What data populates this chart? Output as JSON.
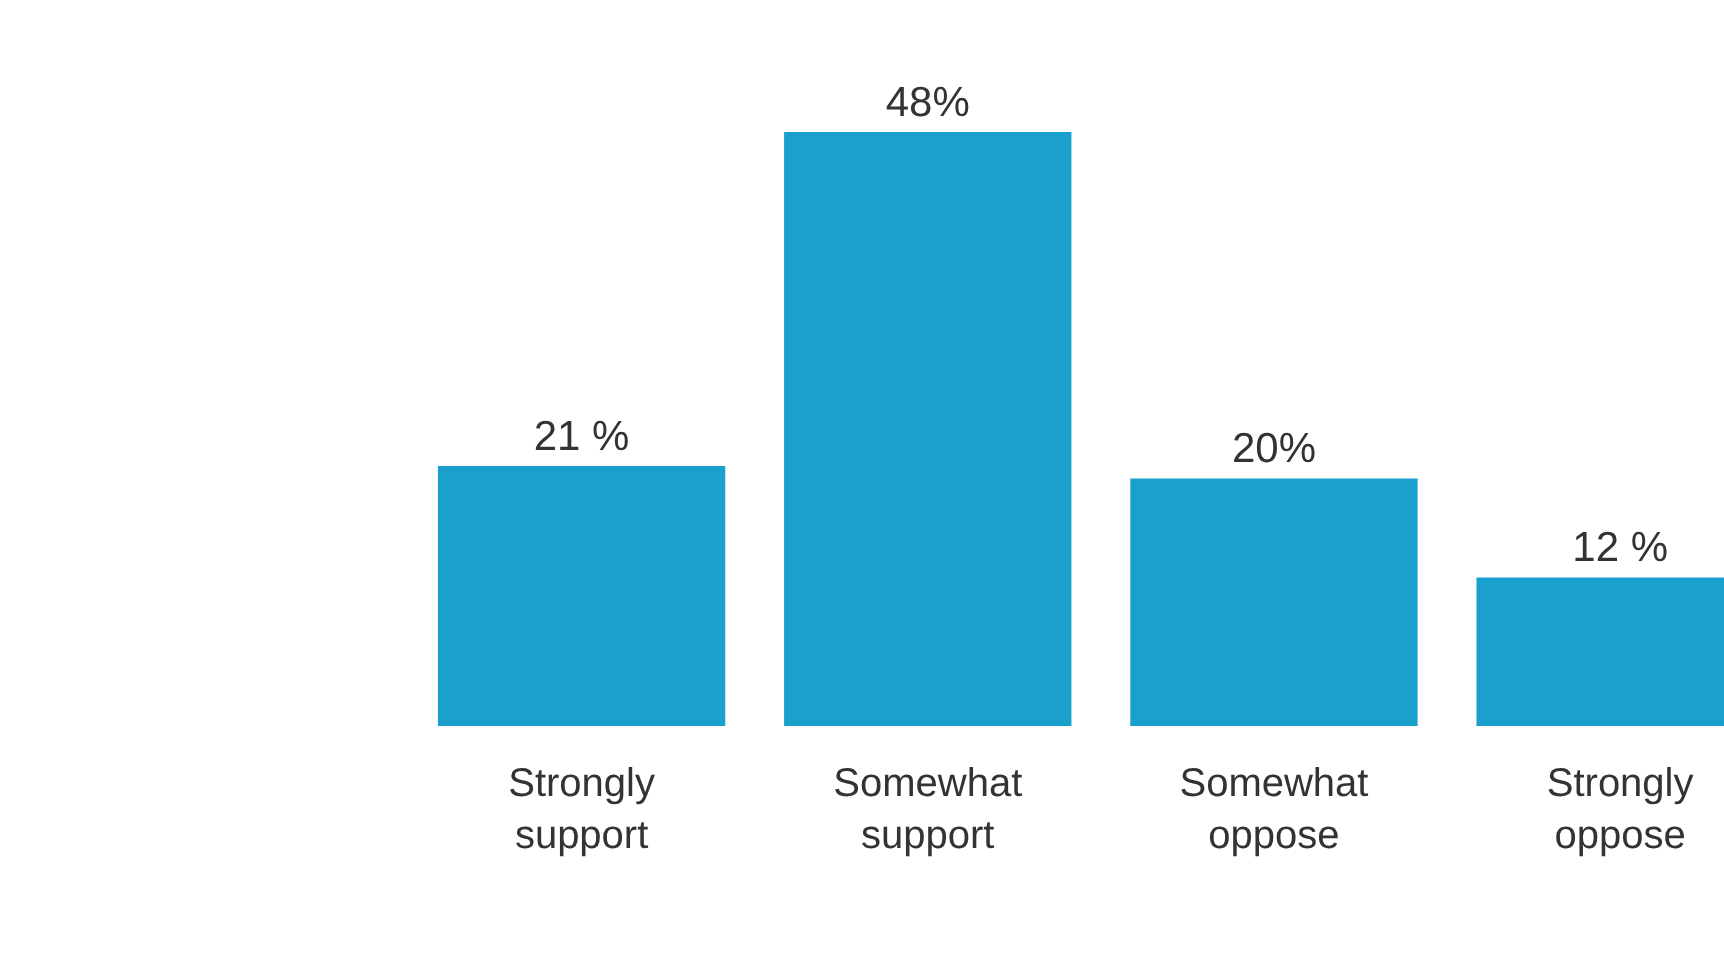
{
  "chart_data": {
    "type": "bar",
    "categories": [
      "Strongly\nsupport",
      "Somewhat\nsupport",
      "Somewhat\noppose",
      "Strongly\noppose"
    ],
    "values": [
      21,
      48,
      20,
      12
    ],
    "color": "#1aa0cc",
    "value_labels": [
      "21 %",
      "48%",
      "20%",
      "12 %"
    ],
    "legend": false
  }
}
